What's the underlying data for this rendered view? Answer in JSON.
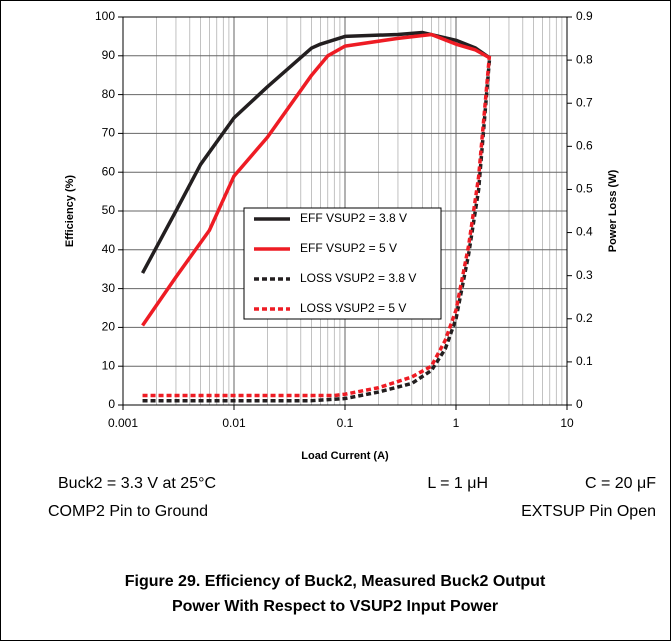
{
  "chart_data": {
    "type": "line",
    "x_label": "Load Current (A)",
    "y_label": "Efficiency (%)",
    "y2_label": "Power Loss (W)",
    "xscale": "log",
    "xlim": [
      0.001,
      10
    ],
    "xticks": [
      0.001,
      0.01,
      0.1,
      1,
      10
    ],
    "ylim": [
      0,
      100
    ],
    "yticks": [
      0,
      10,
      20,
      30,
      40,
      50,
      60,
      70,
      80,
      90,
      100
    ],
    "y2lim": [
      0,
      0.9
    ],
    "y2ticks": [
      0,
      0.1,
      0.2,
      0.3,
      0.4,
      0.5,
      0.6,
      0.7,
      0.8,
      0.9
    ],
    "grid": true,
    "legend": "center",
    "series": [
      {
        "name": "EFF VSUP2 = 3.8 V",
        "color": "#231f20",
        "line_style": "solid",
        "x": [
          0.0015,
          0.003,
          0.005,
          0.01,
          0.02,
          0.05,
          0.06,
          0.1,
          0.3,
          0.5,
          1,
          1.5,
          2
        ],
        "values": [
          34,
          50,
          62,
          74,
          82,
          92,
          93,
          95,
          95.5,
          96,
          94,
          92,
          89.5
        ]
      },
      {
        "name": "EFF VSUP2 = 5 V",
        "color": "#ee1c24",
        "line_style": "solid",
        "x": [
          0.0015,
          0.003,
          0.006,
          0.01,
          0.02,
          0.05,
          0.07,
          0.1,
          0.3,
          0.6,
          1,
          1.5,
          2
        ],
        "values": [
          20.5,
          33,
          45,
          59,
          69,
          85,
          90,
          92.5,
          94.5,
          95.5,
          93,
          91.5,
          89.5
        ]
      },
      {
        "name": "LOSS VSUP2 = 3.8 V",
        "color": "#231f20",
        "line_style": "dashed",
        "axis": "y2",
        "x": [
          0.0015,
          0.05,
          0.1,
          0.2,
          0.4,
          0.6,
          0.8,
          1,
          1.3,
          1.6,
          2
        ],
        "values": [
          0.01,
          0.01,
          0.015,
          0.03,
          0.05,
          0.08,
          0.13,
          0.2,
          0.35,
          0.5,
          0.8
        ]
      },
      {
        "name": "LOSS VSUP2 = 5 V",
        "color": "#ee1c24",
        "line_style": "dashed",
        "axis": "y2",
        "x": [
          0.0015,
          0.08,
          0.1,
          0.2,
          0.4,
          0.6,
          0.8,
          1,
          1.3,
          1.6,
          2
        ],
        "values": [
          0.022,
          0.022,
          0.025,
          0.04,
          0.065,
          0.09,
          0.15,
          0.22,
          0.37,
          0.53,
          0.81
        ]
      }
    ],
    "annotations": [
      "Buck2 = 3.3 V at 25°C",
      "L = 1 μH",
      "C = 20 μF",
      "COMP2 Pin to Ground",
      "EXTSUP Pin Open"
    ],
    "caption": [
      "Figure 29. Efficiency of Buck2, Measured Buck2 Output",
      "Power With Respect to VSUP2 Input Power"
    ]
  }
}
